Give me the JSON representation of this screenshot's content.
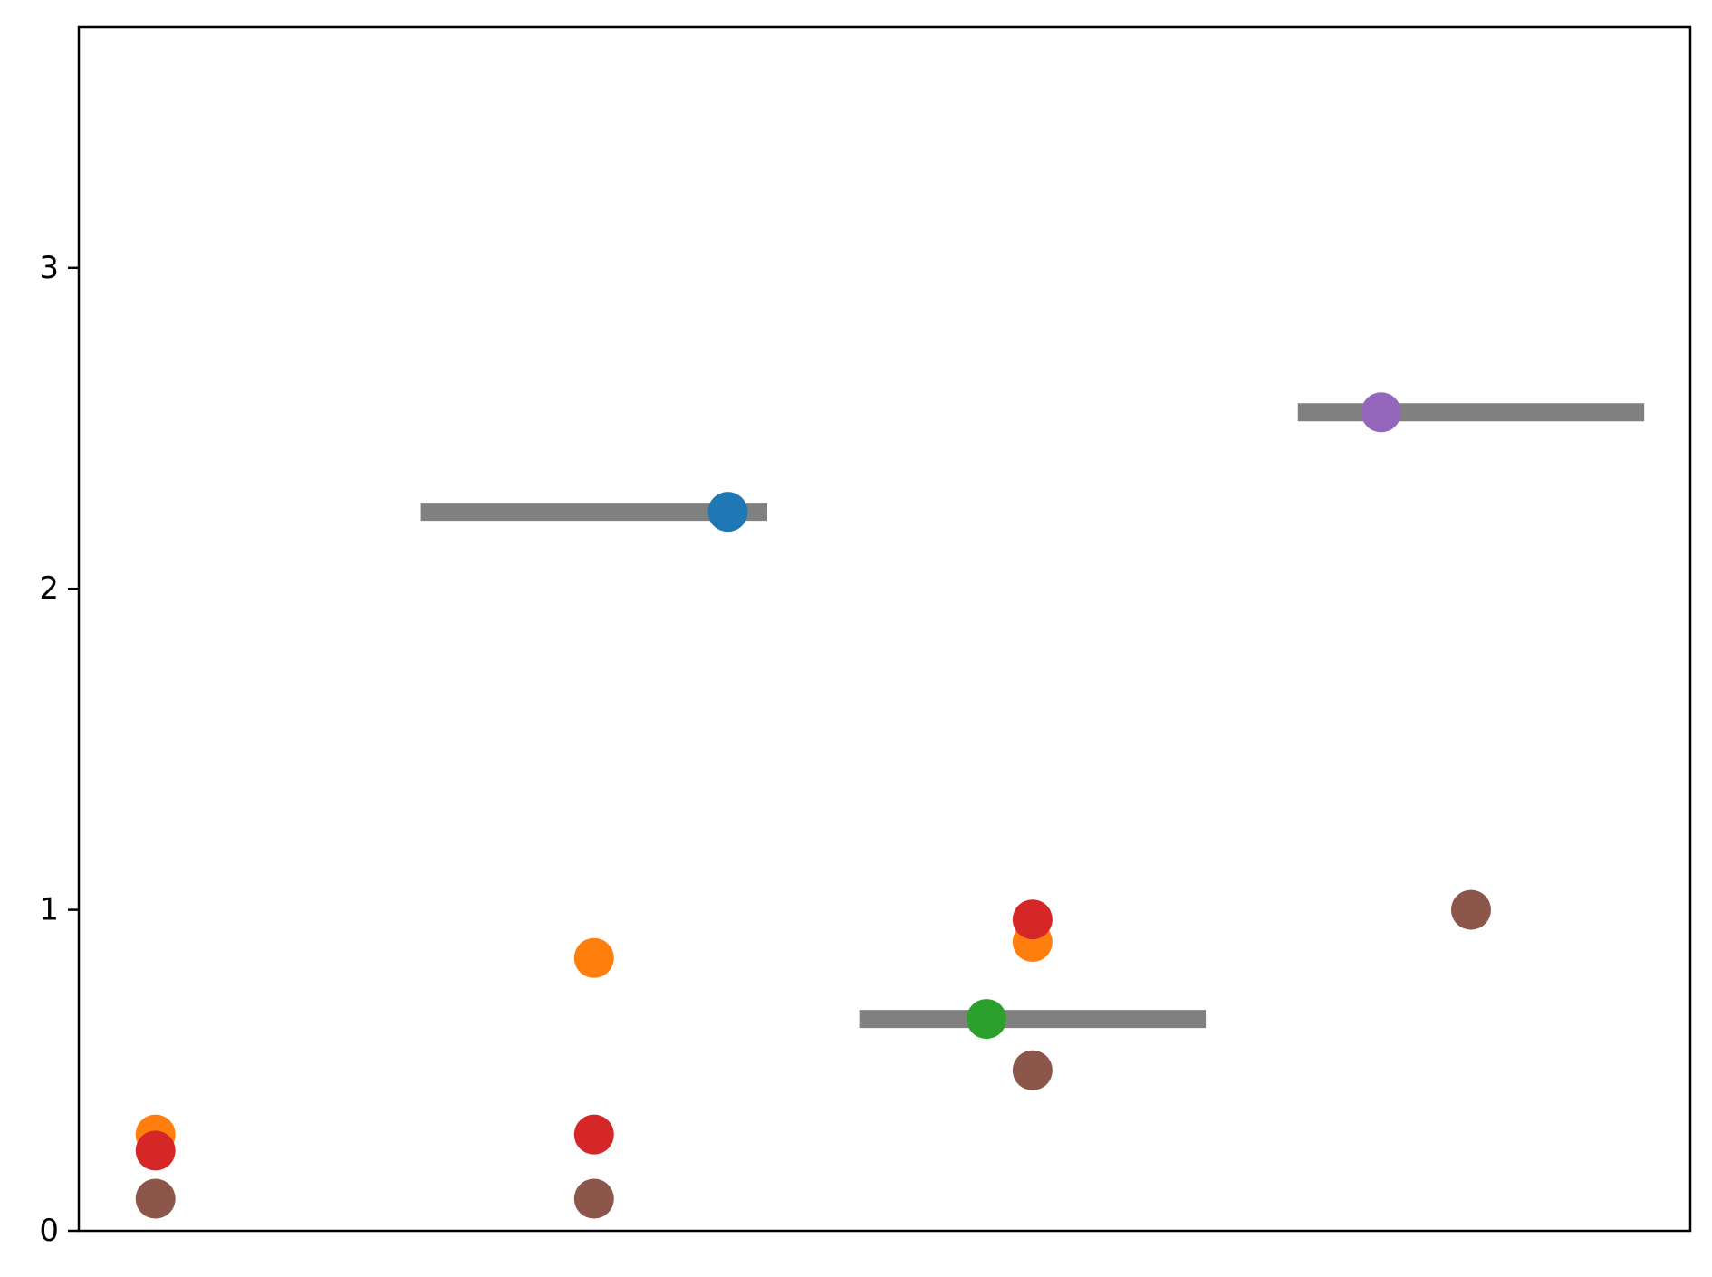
{
  "chart_data": {
    "type": "scatter",
    "title": "",
    "xlabel": "",
    "ylabel": "",
    "xlim": [
      0.5,
      4.175
    ],
    "ylim": [
      0,
      3.75
    ],
    "yticks": [
      0,
      1,
      2,
      3
    ],
    "ytick_labels": [
      "0",
      "1",
      "2",
      "3"
    ],
    "grid": false,
    "legend": "none",
    "reference_lines": {
      "color": "#808080",
      "segments": [
        {
          "x_start": 1.28,
          "x_end": 2.07,
          "y": 2.24
        },
        {
          "x_start": 2.28,
          "x_end": 3.07,
          "y": 0.66
        },
        {
          "x_start": 3.28,
          "x_end": 4.07,
          "y": 2.55
        }
      ]
    },
    "series": [
      {
        "color": "#1f77b4",
        "points": [
          {
            "x": 1.98,
            "y": 2.24
          }
        ]
      },
      {
        "color": "#ff7f0e",
        "points": [
          {
            "x": 0.675,
            "y": 0.3
          },
          {
            "x": 1.675,
            "y": 0.85
          },
          {
            "x": 2.675,
            "y": 0.9
          }
        ]
      },
      {
        "color": "#2ca02c",
        "points": [
          {
            "x": 2.57,
            "y": 0.66
          }
        ]
      },
      {
        "color": "#d62728",
        "points": [
          {
            "x": 0.675,
            "y": 0.25
          },
          {
            "x": 1.675,
            "y": 0.3
          },
          {
            "x": 2.675,
            "y": 0.97
          }
        ]
      },
      {
        "color": "#9467bd",
        "points": [
          {
            "x": 3.47,
            "y": 2.55
          }
        ]
      },
      {
        "color": "#8c564b",
        "points": [
          {
            "x": 0.675,
            "y": 0.1
          },
          {
            "x": 1.675,
            "y": 0.1
          },
          {
            "x": 2.675,
            "y": 0.5
          },
          {
            "x": 3.675,
            "y": 1.0
          }
        ]
      }
    ]
  }
}
